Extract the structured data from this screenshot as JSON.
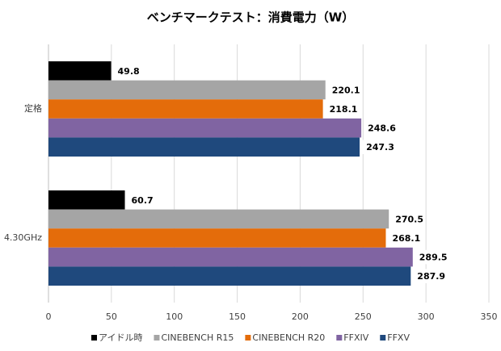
{
  "chart_data": {
    "type": "bar",
    "orientation": "horizontal",
    "title": "ベンチマークテスト：消費電力（W）",
    "categories": [
      "定格",
      "4.30GHz"
    ],
    "series": [
      {
        "name": "アイドル時",
        "color": "#000000",
        "values": [
          49.8,
          60.7
        ]
      },
      {
        "name": "CINEBENCH R15",
        "color": "#a5a5a5",
        "values": [
          220.1,
          270.5
        ]
      },
      {
        "name": "CINEBENCH R20",
        "color": "#e46c0a",
        "values": [
          218.1,
          268.1
        ]
      },
      {
        "name": "FFXIV",
        "color": "#8064a2",
        "values": [
          248.6,
          289.5
        ]
      },
      {
        "name": "FFXV",
        "color": "#1f497d",
        "values": [
          247.3,
          287.9
        ]
      }
    ],
    "xlim": [
      0,
      350
    ],
    "xticks": [
      0,
      50,
      100,
      150,
      200,
      250,
      300,
      350
    ],
    "grid": true,
    "legend": "bottom"
  }
}
